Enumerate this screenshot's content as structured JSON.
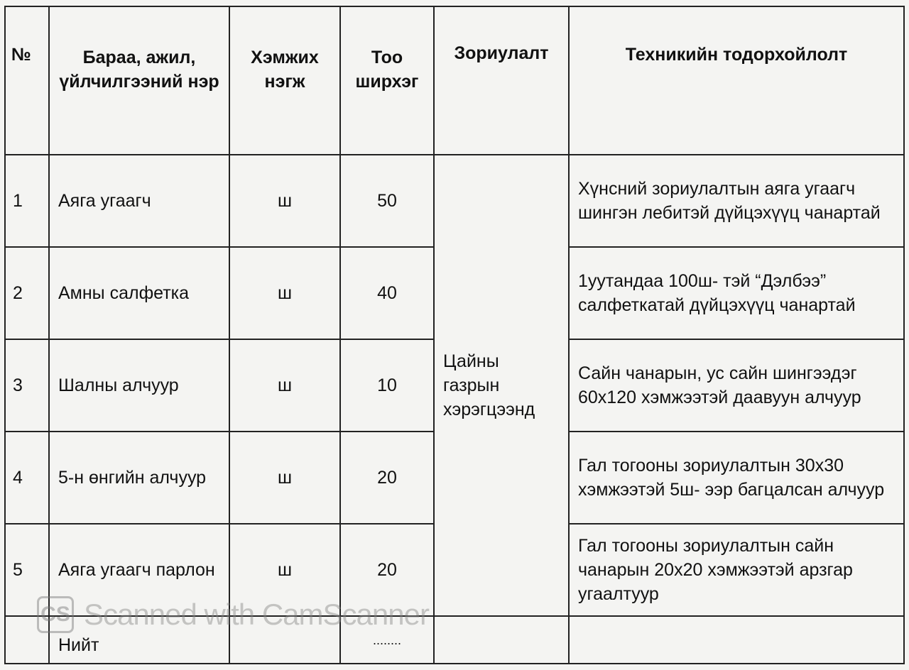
{
  "headers": [
    "№",
    "Бараа, ажил, үйлчилгээний нэр",
    "Хэмжих нэгж",
    "Тоо ширхэг",
    "Зориулалт",
    "Техникийн тодорхойлолт"
  ],
  "purpose": "Цайны газрын хэрэгцээнд",
  "rows": [
    {
      "no": "1",
      "name": "Аяга угаагч",
      "unit": "ш",
      "qty": "50",
      "spec": "Хүнсний зориулалтын аяга угаагч шингэн лебитэй дүйцэхүүц чанартай"
    },
    {
      "no": "2",
      "name": "Амны салфетка",
      "unit": "ш",
      "qty": "40",
      "spec": "1уутандаа 100ш- тэй “Дэлбээ” салфеткатай дүйцэхүүц чанартай"
    },
    {
      "no": "3",
      "name": "Шалны алчуур",
      "unit": "ш",
      "qty": "10",
      "spec": "Сайн чанарын, ус сайн шингээдэг 60х120 хэмжээтэй даавуун алчуур"
    },
    {
      "no": "4",
      "name": "5-н өнгийн алчуур",
      "unit": "ш",
      "qty": "20",
      "spec": "Гал тогооны зориулалтын 30х30 хэмжээтэй 5ш- ээр багцалсан алчуур"
    },
    {
      "no": "5",
      "name": "Аяга угаагч парлон",
      "unit": "ш",
      "qty": "20",
      "spec": "Гал тогооны зориулалтын сайн чанарын 20х20 хэмжээтэй арзгар угаалтуур"
    }
  ],
  "total": {
    "label": "Нийт",
    "qty": "........"
  },
  "watermark": {
    "logo": "CS",
    "text": "Scanned with CamScanner"
  }
}
